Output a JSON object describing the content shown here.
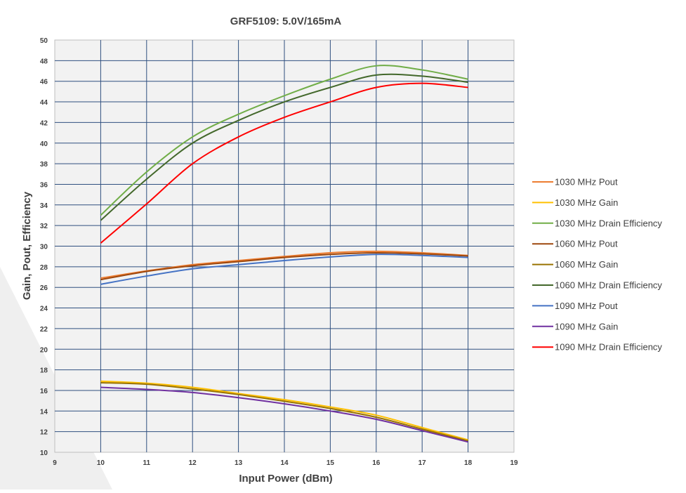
{
  "chart_data": {
    "type": "line",
    "title": "GRF5109:  5.0V/165mA",
    "xlabel": "Input Power (dBm)",
    "ylabel": "Gain, Pout, Efficiency",
    "xlim": [
      9,
      19
    ],
    "ylim": [
      10,
      50
    ],
    "xticks": [
      9,
      10,
      11,
      12,
      13,
      14,
      15,
      16,
      17,
      18,
      19
    ],
    "yticks": [
      10,
      12,
      14,
      16,
      18,
      20,
      22,
      24,
      26,
      28,
      30,
      32,
      34,
      36,
      38,
      40,
      42,
      44,
      46,
      48,
      50
    ],
    "grid": true,
    "legend_position": "right",
    "x": [
      10,
      11,
      12,
      13,
      14,
      15,
      16,
      17,
      18
    ],
    "series": [
      {
        "name": "1030 MHz Pout",
        "color": "#ED7D31",
        "values": [
          26.9,
          27.6,
          28.2,
          28.6,
          29.0,
          29.35,
          29.5,
          29.35,
          29.1
        ]
      },
      {
        "name": "1030 MHz Gain",
        "color": "#FFC000",
        "values": [
          16.9,
          16.7,
          16.3,
          15.7,
          15.1,
          14.4,
          13.6,
          12.4,
          11.2
        ]
      },
      {
        "name": "1030 MHz Drain Efficiency",
        "color": "#70AD47",
        "values": [
          33.0,
          37.2,
          40.6,
          42.8,
          44.6,
          46.2,
          47.5,
          47.1,
          46.2
        ]
      },
      {
        "name": "1060 MHz Pout",
        "color": "#9E480E",
        "values": [
          26.75,
          27.55,
          28.1,
          28.5,
          28.9,
          29.2,
          29.35,
          29.25,
          29.05
        ]
      },
      {
        "name": "1060 MHz Gain",
        "color": "#997300",
        "values": [
          16.75,
          16.6,
          16.15,
          15.6,
          14.95,
          14.25,
          13.4,
          12.25,
          11.1
        ]
      },
      {
        "name": "1060 MHz Drain Efficiency",
        "color": "#43682B",
        "values": [
          32.5,
          36.5,
          40.0,
          42.2,
          44.0,
          45.4,
          46.6,
          46.5,
          45.9
        ]
      },
      {
        "name": "1090 MHz Pout",
        "color": "#4472C4",
        "values": [
          26.3,
          27.1,
          27.8,
          28.2,
          28.6,
          28.95,
          29.2,
          29.1,
          28.9
        ]
      },
      {
        "name": "1090 MHz Gain",
        "color": "#7030A0",
        "values": [
          16.3,
          16.1,
          15.8,
          15.3,
          14.7,
          14.0,
          13.2,
          12.1,
          11.0
        ]
      },
      {
        "name": "1090 MHz Drain Efficiency",
        "color": "#FF0000",
        "values": [
          30.3,
          34.1,
          38.0,
          40.6,
          42.5,
          44.0,
          45.4,
          45.8,
          45.4
        ]
      }
    ]
  }
}
